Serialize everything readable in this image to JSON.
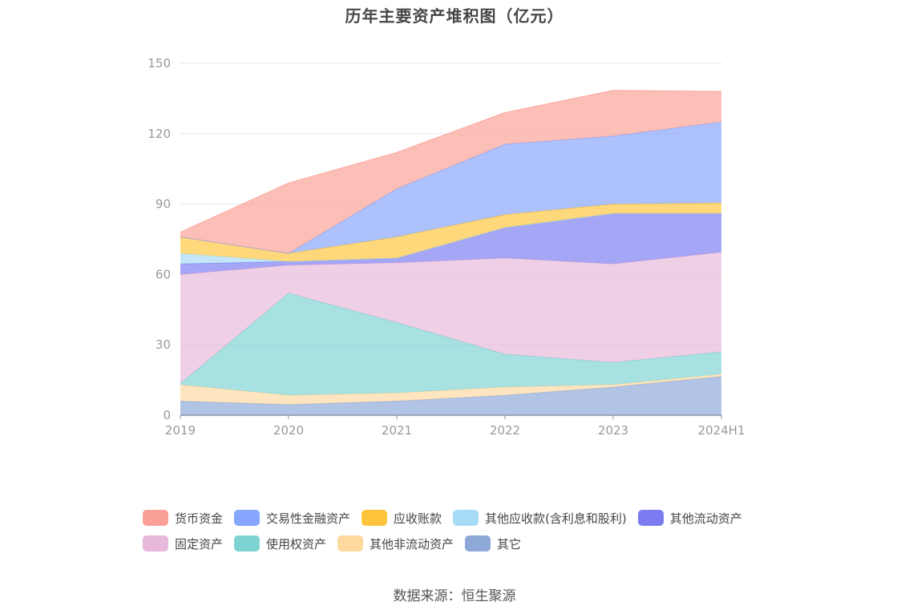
{
  "page_title": "历年主要资产堆积图（亿元）",
  "source_text": "数据来源：恒生聚源",
  "chart_data": {
    "type": "area",
    "stacked": true,
    "title": "历年主要资产堆积图（亿元）",
    "unit": "亿元",
    "x": [
      "2019",
      "2020",
      "2021",
      "2022",
      "2023",
      "2024H1"
    ],
    "ylim": [
      0,
      150
    ],
    "yticks": [
      "0",
      "30",
      "60",
      "90",
      "120",
      "150"
    ],
    "grid": true,
    "legend_position": "bottom",
    "series": [
      {
        "name": "其它",
        "color": "#8ea8d8",
        "values": [
          6,
          4.5,
          6,
          8.5,
          12,
          16.5
        ]
      },
      {
        "name": "其他非流动资产",
        "color": "#fdd9a0",
        "values": [
          7,
          4,
          3.5,
          3.5,
          1,
          1
        ]
      },
      {
        "name": "使用权资产",
        "color": "#7fd3d3",
        "values": [
          0.5,
          43.5,
          30,
          14,
          9.5,
          9.5
        ]
      },
      {
        "name": "固定资产",
        "color": "#e7b8d9",
        "values": [
          46.5,
          12,
          25.5,
          41,
          42,
          42.5
        ]
      },
      {
        "name": "其他流动资产",
        "color": "#7b7cf0",
        "values": [
          4.5,
          1.5,
          2,
          13,
          21.5,
          16.5
        ]
      },
      {
        "name": "其他应收款(含利息和股利)",
        "color": "#a6dcf6",
        "values": [
          4.5,
          0,
          0,
          0,
          0,
          0
        ]
      },
      {
        "name": "应收账款",
        "color": "#fec53c",
        "values": [
          7,
          3.5,
          9,
          5.5,
          4,
          4.5
        ]
      },
      {
        "name": "交易性金融资产",
        "color": "#86a5fc",
        "values": [
          0,
          0,
          20.5,
          30,
          29,
          34.5
        ]
      },
      {
        "name": "货币资金",
        "color": "#fba096",
        "values": [
          2,
          30,
          15.5,
          13.5,
          19.5,
          13
        ]
      }
    ]
  },
  "legend_rows": [
    [
      "货币资金",
      "交易性金融资产",
      "应收账款",
      "其他应收款(含利息和股利)",
      "其他流动资产"
    ],
    [
      "固定资产",
      "使用权资产",
      "其他非流动资产",
      "其它"
    ]
  ]
}
